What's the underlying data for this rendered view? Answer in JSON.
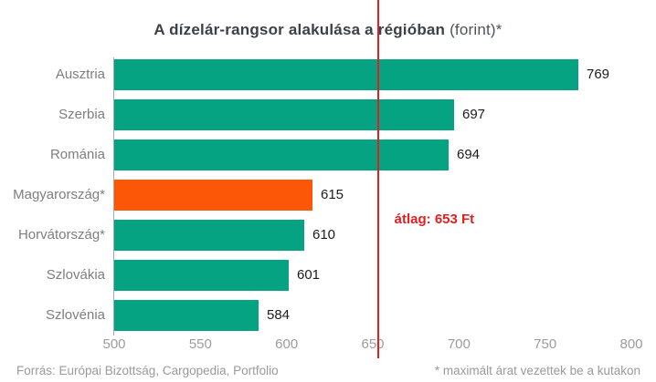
{
  "title": {
    "bold": "A dízelár-rangsor alakulása a régióban",
    "normal": " (forint)*"
  },
  "chart_data": {
    "type": "bar",
    "orientation": "horizontal",
    "title": "A dízelár-rangsor alakulása a régióban (forint)*",
    "categories": [
      "Ausztria",
      "Szerbia",
      "Románia",
      "Magyarország*",
      "Horvátország*",
      "Szlovákia",
      "Szlovénia"
    ],
    "values": [
      769,
      697,
      694,
      615,
      610,
      601,
      584
    ],
    "bar_colors": [
      "#06A383",
      "#06A383",
      "#06A383",
      "#FC5607",
      "#06A383",
      "#06A383",
      "#06A383"
    ],
    "highlighted_category": "Magyarország*",
    "xlim": [
      500,
      800
    ],
    "xticks": [
      500,
      550,
      600,
      650,
      700,
      750,
      800
    ],
    "grid": false,
    "value_labels": true,
    "average_line": {
      "value": 653,
      "label": "átlag: 653 Ft",
      "color": "#E41E20"
    }
  },
  "footer": {
    "source": "Forrás: Európai Bizottság, Cargopedia, Portfolio",
    "note": "* maximált árat vezettek be a kutakon"
  },
  "colors": {
    "bar_green": "#06A383",
    "bar_orange": "#FC5607",
    "red": "#E41E20",
    "category_gray": "#7E7E7E",
    "tick_gray": "#9C9C9C",
    "title_dark": "#3A4148",
    "value_dark": "#1C1C1C"
  }
}
